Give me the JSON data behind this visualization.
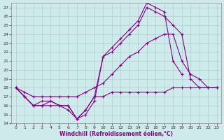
{
  "xlabel": "Windchill (Refroidissement éolien,°C)",
  "bg_color": "#ceeaeb",
  "line_color": "#880088",
  "grid_color": "#aacfcf",
  "xlim": [
    -0.5,
    23.5
  ],
  "ylim": [
    14,
    27.5
  ],
  "yticks": [
    14,
    15,
    16,
    17,
    18,
    19,
    20,
    21,
    22,
    23,
    24,
    25,
    26,
    27
  ],
  "xticks": [
    0,
    1,
    2,
    3,
    4,
    5,
    6,
    7,
    8,
    9,
    10,
    11,
    12,
    13,
    14,
    15,
    16,
    17,
    18,
    19,
    20,
    21,
    22,
    23
  ],
  "lines": [
    {
      "x": [
        0,
        1,
        2,
        3,
        4,
        5,
        6,
        7,
        8,
        9,
        10,
        11,
        12,
        13,
        14,
        15,
        16,
        17,
        18,
        19,
        20,
        21,
        22,
        23
      ],
      "y": [
        18,
        17,
        16,
        16,
        16.5,
        16,
        15.5,
        14.5,
        15.5,
        17,
        17,
        17.5,
        17.5,
        17.5,
        17.5,
        17.5,
        17.5,
        17.5,
        18,
        18,
        18,
        18,
        18,
        18
      ]
    },
    {
      "x": [
        0,
        1,
        2,
        3,
        4,
        5,
        6,
        7,
        8,
        9,
        10,
        11,
        12,
        13,
        14,
        15,
        16,
        17,
        18,
        19,
        20,
        21,
        22,
        23
      ],
      "y": [
        18,
        17,
        16,
        16,
        16,
        16,
        16,
        14.5,
        15,
        16.5,
        21.5,
        22,
        23,
        24,
        25,
        27,
        26.5,
        26,
        25,
        24,
        19,
        18,
        18,
        18
      ]
    },
    {
      "x": [
        0,
        1,
        2,
        3,
        4,
        5,
        6,
        7,
        8,
        9,
        10,
        11,
        12,
        13,
        14,
        15,
        16,
        17,
        18,
        19,
        20,
        21
      ],
      "y": [
        18,
        17,
        16,
        16.5,
        16.5,
        16,
        16,
        14.5,
        15.5,
        17,
        21.5,
        22.5,
        23.5,
        24.5,
        25.5,
        27.5,
        27,
        26.5,
        21,
        19.5,
        null,
        null
      ]
    },
    {
      "x": [
        0,
        1,
        2,
        3,
        4,
        5,
        6,
        7,
        8,
        9,
        10,
        11,
        12,
        13,
        14,
        15,
        16,
        17,
        18,
        19,
        20,
        21,
        22,
        23
      ],
      "y": [
        18,
        17.5,
        17,
        17,
        17,
        17,
        17,
        17,
        17.5,
        18,
        18.5,
        19.5,
        20.5,
        21.5,
        22,
        23,
        23.5,
        24,
        24,
        21,
        19.5,
        19,
        18,
        18
      ]
    }
  ]
}
